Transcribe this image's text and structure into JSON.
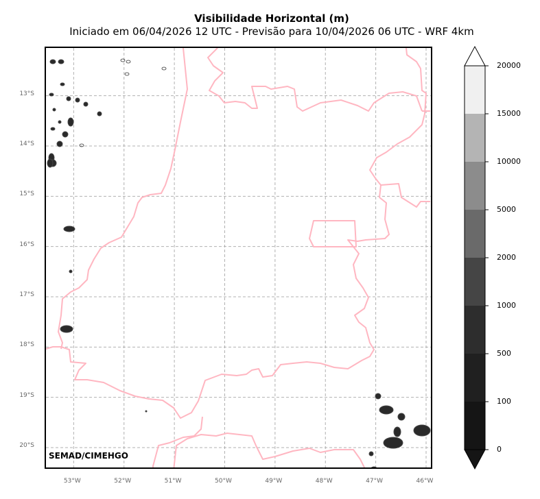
{
  "title": "Visibilidade Horizontal (m)",
  "subtitle": "Iniciado em 06/04/2026 12 UTC - Previsão para 10/04/2026 06 UTC - WRF 4km",
  "credit": "SEMAD/CIMEHGO",
  "map": {
    "lon_range": [
      -53.55,
      -45.85
    ],
    "lat_range": [
      -20.45,
      -12.05
    ],
    "lat_ticks": [
      "13°S",
      "14°S",
      "15°S",
      "16°S",
      "17°S",
      "18°S",
      "19°S",
      "20°S"
    ],
    "lon_ticks": [
      "53°W",
      "52°W",
      "51°W",
      "50°W",
      "49°W",
      "48°W",
      "47°W",
      "46°W"
    ],
    "gridlines": true,
    "border_color": "#ffb6c1",
    "gridline_color": "#b0b0b0"
  },
  "colorbar": {
    "levels": [
      "0",
      "100",
      "500",
      "1000",
      "2000",
      "5000",
      "10000",
      "15000",
      "20000"
    ],
    "colors": [
      "#151515",
      "#202020",
      "#2d2d2d",
      "#454545",
      "#6a6a6a",
      "#8c8c8c",
      "#b4b4b4",
      "#f0f0f0"
    ],
    "extend": "both"
  }
}
